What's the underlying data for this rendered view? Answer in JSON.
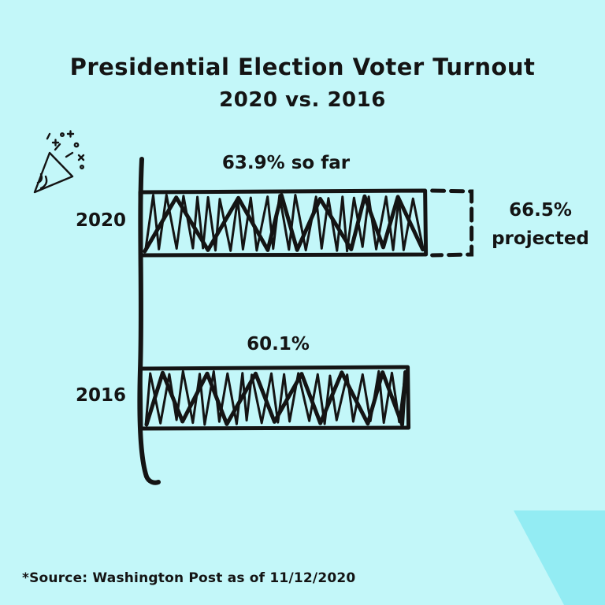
{
  "page": {
    "title_line1": "Presidential Election Voter Turnout",
    "title_line2": "2020 vs. 2016",
    "source_note": "*Source: Washington Post as of 11/12/2020"
  },
  "chart_data": {
    "type": "bar",
    "orientation": "horizontal",
    "title": "Presidential Election Voter Turnout",
    "subtitle": "2020 vs. 2016",
    "categories": [
      "2020",
      "2016"
    ],
    "series": [
      {
        "name": "Voter turnout",
        "values": [
          63.9,
          60.1
        ]
      }
    ],
    "projection": {
      "category": "2020",
      "value": 66.5,
      "line1": "66.5%",
      "line2": "projected"
    },
    "bar_labels": [
      "63.9% so far",
      "60.1%"
    ],
    "xlim": [
      0,
      70
    ],
    "grid": false,
    "legend": "none",
    "style": "hand-drawn scribble-fill horizontal bars, dashed projection box",
    "colors": {
      "background": "#c3f7f9",
      "ink": "#141414",
      "corner_accent": "#93ecf3"
    }
  },
  "icons": {
    "party_popper": "party-popper-icon"
  }
}
